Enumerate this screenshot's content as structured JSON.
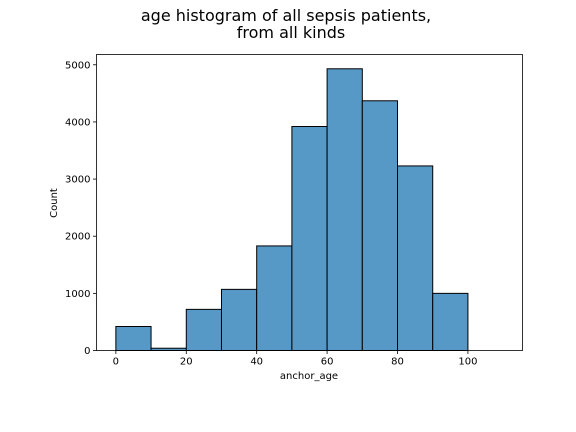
{
  "chart_data": {
    "type": "bar",
    "title_lines": [
      "age histogram of all sepsis patients,",
      "from all kinds"
    ],
    "xlabel": "anchor_age",
    "ylabel": "Count",
    "xlim": [
      -5.5,
      115.5
    ],
    "ylim": [
      0,
      5180
    ],
    "xticks": [
      "0",
      "20",
      "40",
      "60",
      "80",
      "100"
    ],
    "yticks": [
      "0",
      "1000",
      "2000",
      "3000",
      "4000",
      "5000"
    ],
    "bins": [
      {
        "start": 0,
        "end": 10,
        "count": 420
      },
      {
        "start": 10,
        "end": 20,
        "count": 40
      },
      {
        "start": 20,
        "end": 30,
        "count": 720
      },
      {
        "start": 30,
        "end": 40,
        "count": 1070
      },
      {
        "start": 40,
        "end": 50,
        "count": 1830
      },
      {
        "start": 50,
        "end": 60,
        "count": 3920
      },
      {
        "start": 60,
        "end": 70,
        "count": 4930
      },
      {
        "start": 70,
        "end": 80,
        "count": 4370
      },
      {
        "start": 80,
        "end": 90,
        "count": 3230
      },
      {
        "start": 90,
        "end": 100,
        "count": 1000
      }
    ],
    "bar_color": "#5698c6",
    "grid": false,
    "legend": "none"
  }
}
